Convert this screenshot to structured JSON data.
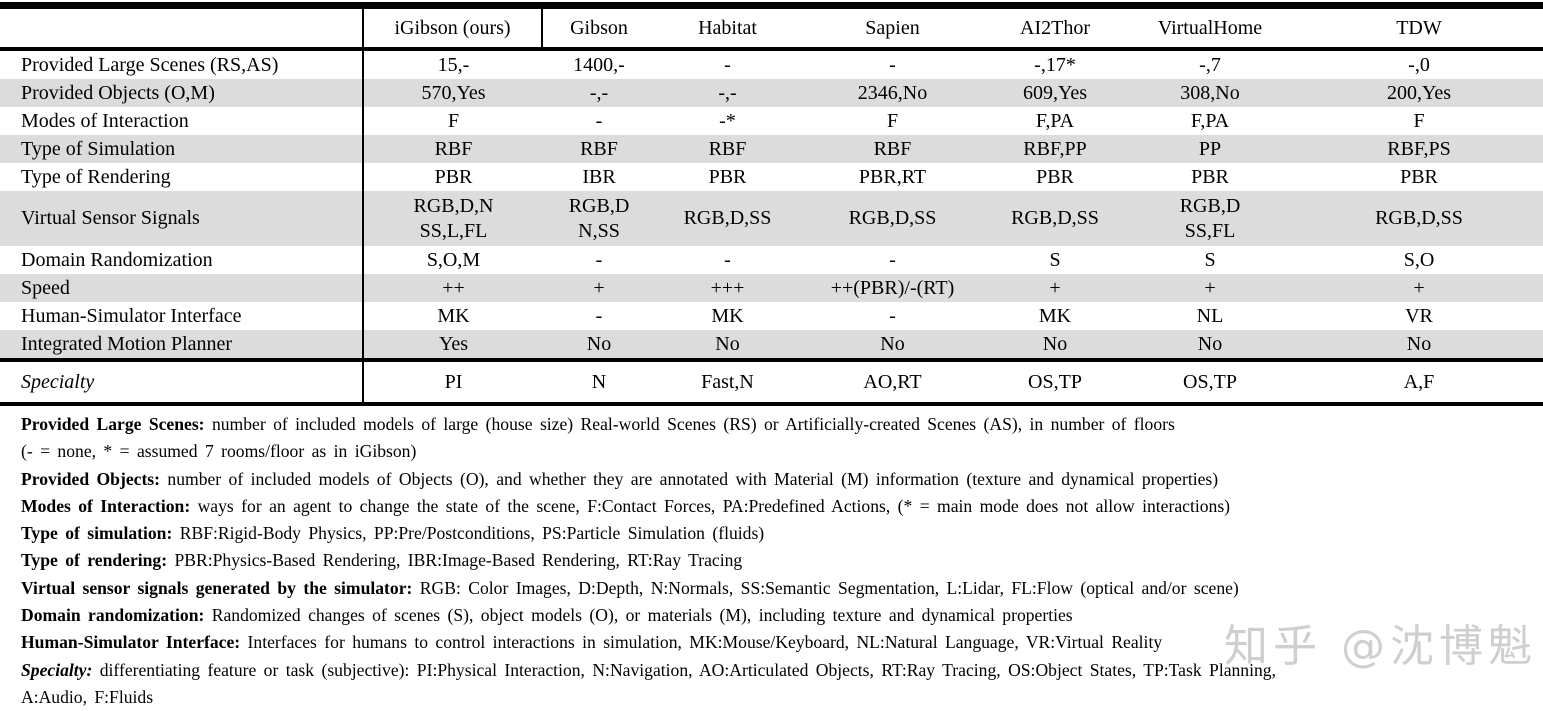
{
  "colors": {
    "background": "#ffffff",
    "text": "#000000",
    "rule": "#000000",
    "row_shade": "#dcdcdc",
    "watermark": "#a8a8a8"
  },
  "table": {
    "columns": [
      "",
      "iGibson (ours)",
      "Gibson",
      "Habitat",
      "Sapien",
      "AI2Thor",
      "VirtualHome",
      "TDW"
    ],
    "rows": [
      {
        "label": "Provided Large Scenes (RS,AS)",
        "shaded": false,
        "tall": false,
        "values": [
          "15,-",
          "1400,-",
          "-",
          "-",
          "-,17*",
          "-,7",
          "-,0"
        ]
      },
      {
        "label": "Provided Objects (O,M)",
        "shaded": true,
        "tall": false,
        "values": [
          "570,Yes",
          "-,-",
          "-,-",
          "2346,No",
          "609,Yes",
          "308,No",
          "200,Yes"
        ]
      },
      {
        "label": "Modes of Interaction",
        "shaded": false,
        "tall": false,
        "values": [
          "F",
          "-",
          "-*",
          "F",
          "F,PA",
          "F,PA",
          "F"
        ]
      },
      {
        "label": "Type of Simulation",
        "shaded": true,
        "tall": false,
        "values": [
          "RBF",
          "RBF",
          "RBF",
          "RBF",
          "RBF,PP",
          "PP",
          "RBF,PS"
        ]
      },
      {
        "label": "Type of Rendering",
        "shaded": false,
        "tall": false,
        "values": [
          "PBR",
          "IBR",
          "PBR",
          "PBR,RT",
          "PBR",
          "PBR",
          "PBR"
        ]
      },
      {
        "label": "Virtual Sensor Signals",
        "shaded": true,
        "tall": true,
        "values": [
          "RGB,D,N\nSS,L,FL",
          "RGB,D\nN,SS",
          "RGB,D,SS",
          "RGB,D,SS",
          "RGB,D,SS",
          "RGB,D\nSS,FL",
          "RGB,D,SS"
        ]
      },
      {
        "label": "Domain Randomization",
        "shaded": false,
        "tall": false,
        "values": [
          "S,O,M",
          "-",
          "-",
          "-",
          "S",
          "S",
          "S,O"
        ]
      },
      {
        "label": "Speed",
        "shaded": true,
        "tall": false,
        "values": [
          "++",
          "+",
          "+++",
          "++(PBR)/-(RT)",
          "+",
          "+",
          "+"
        ]
      },
      {
        "label": "Human-Simulator Interface",
        "shaded": false,
        "tall": false,
        "values": [
          "MK",
          "-",
          "MK",
          "-",
          "MK",
          "NL",
          "VR"
        ]
      },
      {
        "label": "Integrated Motion Planner",
        "shaded": true,
        "tall": false,
        "values": [
          "Yes",
          "No",
          "No",
          "No",
          "No",
          "No",
          "No"
        ]
      }
    ],
    "specialty_row": {
      "label": "Specialty",
      "values": [
        "PI",
        "N",
        "Fast,N",
        "AO,RT",
        "OS,TP",
        "OS,TP",
        "A,F"
      ]
    }
  },
  "footnotes": [
    {
      "term": "Provided Large Scenes:",
      "italic": false,
      "text": " number of included models of large (house size) Real-world Scenes (RS) or Artificially-created Scenes (AS), in number of floors\n(- = none, * = assumed 7 rooms/floor as in iGibson)"
    },
    {
      "term": "Provided Objects:",
      "italic": false,
      "text": " number of included models of Objects (O), and whether they are annotated with Material (M) information (texture and dynamical properties)"
    },
    {
      "term": "Modes of Interaction:",
      "italic": false,
      "text": " ways for an agent to change the state of the scene, F:Contact Forces, PA:Predefined Actions, (* = main mode does not allow interactions)"
    },
    {
      "term": "Type of simulation:",
      "italic": false,
      "text": " RBF:Rigid-Body Physics, PP:Pre/Postconditions, PS:Particle Simulation (fluids)"
    },
    {
      "term": "Type of rendering:",
      "italic": false,
      "text": " PBR:Physics-Based Rendering, IBR:Image-Based Rendering, RT:Ray Tracing"
    },
    {
      "term": "Virtual sensor signals generated by the simulator:",
      "italic": false,
      "text": " RGB: Color Images, D:Depth, N:Normals, SS:Semantic Segmentation, L:Lidar, FL:Flow (optical and/or scene)"
    },
    {
      "term": "Domain randomization:",
      "italic": false,
      "text": " Randomized changes of scenes (S), object models (O), or materials (M), including texture and dynamical properties"
    },
    {
      "term": "Human-Simulator Interface:",
      "italic": false,
      "text": " Interfaces for humans to control interactions in simulation, MK:Mouse/Keyboard, NL:Natural Language, VR:Virtual Reality"
    },
    {
      "term": "Specialty:",
      "italic": true,
      "text": " differentiating feature or task (subjective): PI:Physical Interaction, N:Navigation, AO:Articulated Objects, RT:Ray Tracing, OS:Object States, TP:Task Planning,\nA:Audio, F:Fluids"
    }
  ],
  "watermark": {
    "text": "知乎 @沈博魁"
  }
}
